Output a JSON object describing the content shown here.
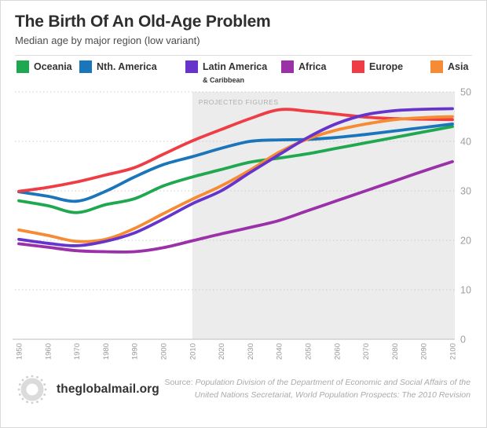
{
  "header": {
    "title": "The Birth Of An Old-Age Problem",
    "subtitle": "Median age by major region (low variant)"
  },
  "legend": {
    "items": [
      {
        "label": "Oceania",
        "sublabel": "",
        "color": "#1fa84f"
      },
      {
        "label": "Nth. America",
        "sublabel": "",
        "color": "#1b75bb"
      },
      {
        "label": "Latin America",
        "sublabel": "& Caribbean",
        "color": "#6633cc"
      },
      {
        "label": "Africa",
        "sublabel": "",
        "color": "#9a31a8"
      },
      {
        "label": "Europe",
        "sublabel": "",
        "color": "#ee3d45"
      },
      {
        "label": "Asia",
        "sublabel": "",
        "color": "#f68b33"
      }
    ]
  },
  "chart_data": {
    "type": "line",
    "title": "The Birth Of An Old-Age Problem",
    "subtitle": "Median age by major region (low variant)",
    "x": [
      1950,
      1960,
      1970,
      1980,
      1990,
      2000,
      2010,
      2020,
      2030,
      2040,
      2050,
      2060,
      2070,
      2080,
      2090,
      2100
    ],
    "series": [
      {
        "name": "Oceania",
        "color": "#1fa84f",
        "values": [
          28.0,
          27.0,
          25.6,
          27.2,
          28.4,
          31.0,
          32.8,
          34.3,
          35.8,
          36.6,
          37.5,
          38.6,
          39.7,
          40.8,
          41.9,
          43.0
        ]
      },
      {
        "name": "Nth. America",
        "color": "#1b75bb",
        "values": [
          29.8,
          28.9,
          27.9,
          29.9,
          32.8,
          35.3,
          36.9,
          38.6,
          40.0,
          40.3,
          40.4,
          40.8,
          41.4,
          42.1,
          42.8,
          43.5
        ]
      },
      {
        "name": "Latin America & Caribbean",
        "color": "#6633cc",
        "values": [
          20.2,
          19.4,
          18.9,
          19.8,
          21.5,
          24.3,
          27.4,
          30.0,
          33.7,
          37.3,
          40.8,
          43.6,
          45.4,
          46.2,
          46.5,
          46.6
        ]
      },
      {
        "name": "Africa",
        "color": "#9a31a8",
        "values": [
          19.3,
          18.6,
          17.9,
          17.7,
          17.7,
          18.5,
          19.9,
          21.3,
          22.6,
          24.0,
          26.0,
          28.0,
          30.0,
          32.0,
          34.0,
          35.9
        ]
      },
      {
        "name": "Europe",
        "color": "#ee3d45",
        "values": [
          29.9,
          30.7,
          31.8,
          33.2,
          34.7,
          37.4,
          40.1,
          42.4,
          44.6,
          46.4,
          46.1,
          45.5,
          44.9,
          44.6,
          44.5,
          44.4
        ]
      },
      {
        "name": "Asia",
        "color": "#f68b33",
        "values": [
          22.1,
          21.0,
          19.8,
          20.2,
          22.4,
          25.4,
          28.3,
          31.0,
          34.2,
          37.8,
          40.5,
          42.3,
          43.5,
          44.4,
          44.8,
          45.0
        ]
      }
    ],
    "ylim": [
      0,
      50
    ],
    "yticks": [
      0,
      10,
      20,
      30,
      40,
      50
    ],
    "xticks": [
      1950,
      1960,
      1970,
      1980,
      1990,
      2000,
      2010,
      2020,
      2030,
      2040,
      2050,
      2060,
      2070,
      2080,
      2090,
      2100
    ],
    "grid": "horizontal dotted",
    "legend_position": "top",
    "projected_from": 2010,
    "projected_label": "PROJECTED FIGURES",
    "projected_fill": "#ececec"
  },
  "footer": {
    "brand": "theglobalmail.org",
    "source_prefix": "Source: ",
    "source_line1": "Population Division of the Department of Economic and Social Affairs of the",
    "source_line2": "United Nations Secretariat, World Population Prospects: The 2010 Revision"
  }
}
